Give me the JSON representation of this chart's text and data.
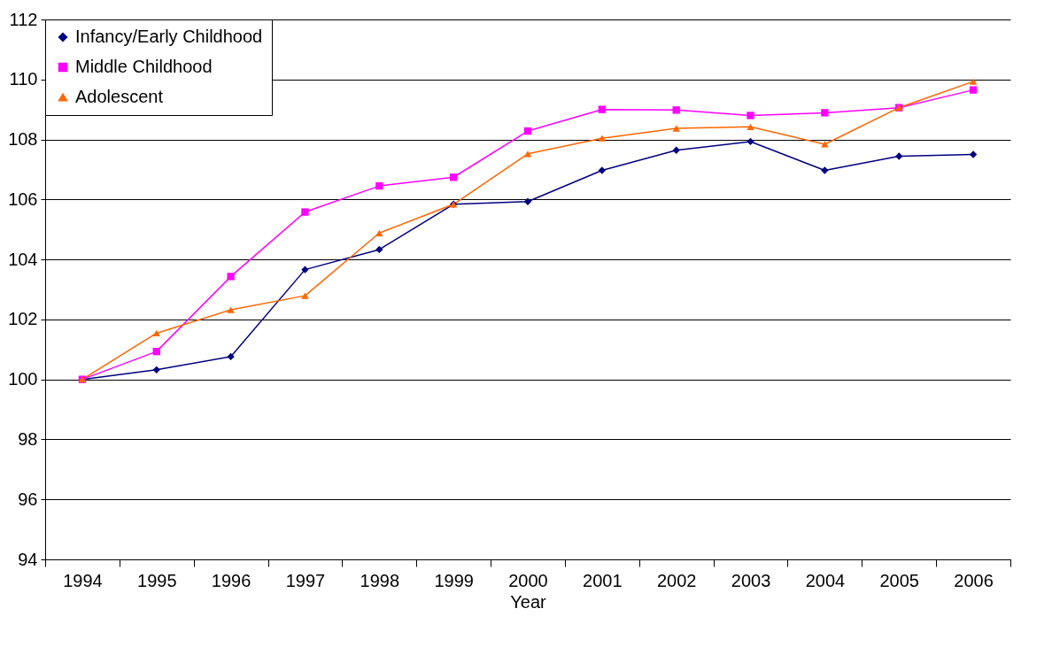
{
  "chart_data": {
    "type": "line",
    "xlabel": "Year",
    "categories": [
      "1994",
      "1995",
      "1996",
      "1997",
      "1998",
      "1999",
      "2000",
      "2001",
      "2002",
      "2003",
      "2004",
      "2005",
      "2006"
    ],
    "series": [
      {
        "name": "Infancy/Early Childhood",
        "color": "#000080",
        "marker": "diamond",
        "values": [
          100,
          100.32,
          100.76,
          103.66,
          104.33,
          105.84,
          105.93,
          106.97,
          107.64,
          107.93,
          106.97,
          107.44,
          107.5
        ]
      },
      {
        "name": "Middle Childhood",
        "color": "#ff00ff",
        "marker": "square",
        "values": [
          100,
          100.93,
          103.43,
          105.58,
          106.45,
          106.74,
          108.28,
          109.0,
          108.98,
          108.8,
          108.89,
          109.06,
          109.65
        ]
      },
      {
        "name": "Adolescent",
        "color": "#ff6600",
        "marker": "triangle",
        "values": [
          100,
          101.54,
          102.32,
          102.79,
          104.88,
          105.84,
          107.52,
          108.04,
          108.37,
          108.42,
          107.84,
          109.06,
          109.93
        ]
      }
    ],
    "ylim": [
      94,
      112
    ],
    "yticks": [
      94,
      96,
      98,
      100,
      102,
      104,
      106,
      108,
      110,
      112
    ],
    "grid": "y",
    "legend": "top left"
  }
}
